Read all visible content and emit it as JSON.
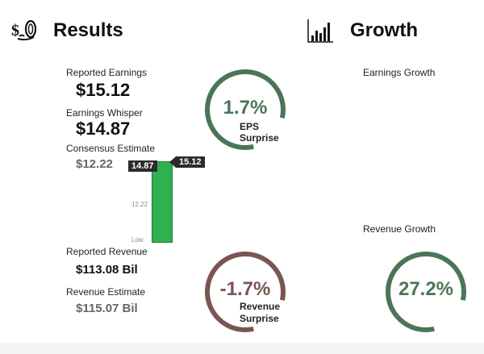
{
  "results": {
    "title": "Results",
    "icon": "money-bag-icon",
    "reported_earnings_label": "Reported Earnings",
    "reported_earnings": "$15.12",
    "whisper_label": "Earnings Whisper",
    "whisper": "$14.87",
    "consensus_label": "Consensus Estimate",
    "consensus": "$12.22",
    "reported_revenue_label": "Reported Revenue",
    "reported_revenue": "$113.08 Bil",
    "revenue_estimate_label": "Revenue Estimate",
    "revenue_estimate": "$115.07 Bil"
  },
  "bar_chart": {
    "whisper_tag": "14.87",
    "reported_tag": "15.12",
    "tick_consensus": "12.22",
    "tick_low": "Low",
    "bar_color": "#2fb151",
    "low_value": 0,
    "consensus_value": 12.22,
    "reported_value": 15.12
  },
  "eps_gauge": {
    "value": "1.7%",
    "caption_line1": "EPS",
    "caption_line2": "Surprise",
    "color": "#4a7557",
    "fill_fraction": 0.82
  },
  "revenue_gauge": {
    "value": "-1.7%",
    "caption_line1": "Revenue",
    "caption_line2": "Surprise",
    "color": "#7a5552",
    "fill_fraction": 0.82
  },
  "growth": {
    "title": "Growth",
    "icon": "bar-chart-icon",
    "earnings_growth_label": "Earnings Growth",
    "revenue_growth_label": "Revenue Growth",
    "revenue_growth_value": "27.2%",
    "color": "#4a7557",
    "fill_fraction": 0.82
  }
}
